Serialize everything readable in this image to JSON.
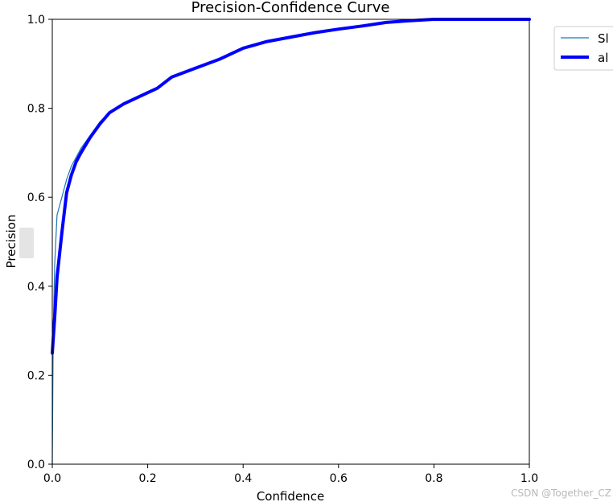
{
  "chart_data": {
    "type": "line",
    "title": "Precision-Confidence Curve",
    "xlabel": "Confidence",
    "ylabel": "Precision",
    "xlim": [
      0.0,
      1.0
    ],
    "ylim": [
      0.0,
      1.0
    ],
    "xticks": [
      "0.0",
      "0.2",
      "0.4",
      "0.6",
      "0.8",
      "1.0"
    ],
    "yticks": [
      "0.0",
      "0.2",
      "0.4",
      "0.6",
      "0.8",
      "1.0"
    ],
    "grid": false,
    "legend_position": "outside-top-right",
    "series": [
      {
        "name": "Sl",
        "color": "#1f77b4",
        "linewidth": "thin",
        "x": [
          0.0,
          0.002,
          0.005,
          0.01,
          0.02,
          0.03,
          0.04,
          0.05,
          0.06,
          0.08,
          0.1,
          0.12,
          0.15,
          0.2,
          0.22,
          0.25,
          0.3,
          0.35,
          0.4,
          0.45,
          0.5,
          0.55,
          0.6,
          0.65,
          0.7,
          0.75,
          0.8,
          0.85,
          0.9,
          0.95,
          1.0
        ],
        "y": [
          0.0,
          0.3,
          0.45,
          0.56,
          0.6,
          0.64,
          0.67,
          0.69,
          0.71,
          0.74,
          0.77,
          0.79,
          0.81,
          0.835,
          0.845,
          0.87,
          0.89,
          0.91,
          0.935,
          0.95,
          0.96,
          0.97,
          0.978,
          0.985,
          0.993,
          0.997,
          1.0,
          1.0,
          1.0,
          1.0,
          1.0
        ]
      },
      {
        "name": "al",
        "color": "#0000ff",
        "linewidth": "thick",
        "x": [
          0.0,
          0.005,
          0.01,
          0.02,
          0.03,
          0.04,
          0.05,
          0.06,
          0.08,
          0.1,
          0.12,
          0.15,
          0.2,
          0.22,
          0.25,
          0.3,
          0.35,
          0.4,
          0.45,
          0.5,
          0.55,
          0.6,
          0.65,
          0.7,
          0.75,
          0.8,
          0.85,
          0.9,
          0.95,
          1.0
        ],
        "y": [
          0.25,
          0.33,
          0.42,
          0.52,
          0.61,
          0.65,
          0.68,
          0.7,
          0.735,
          0.765,
          0.79,
          0.81,
          0.835,
          0.845,
          0.87,
          0.89,
          0.91,
          0.935,
          0.95,
          0.96,
          0.97,
          0.978,
          0.985,
          0.993,
          0.997,
          1.0,
          1.0,
          1.0,
          1.0,
          1.0
        ]
      }
    ]
  },
  "watermark": "CSDN @Together_CZ"
}
